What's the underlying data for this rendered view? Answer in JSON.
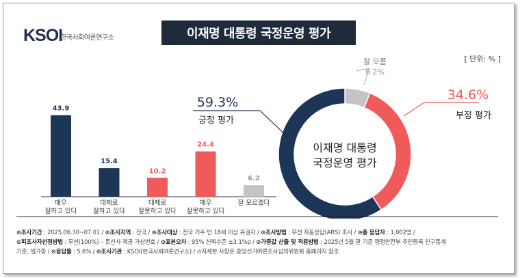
{
  "logo": {
    "brand": "KSOI",
    "name": "한국사회여론연구소"
  },
  "title": "이재명 대통령 국정운영 평가",
  "unit_label": "[ 단위: % ]",
  "colors": {
    "positive": "#1d3557",
    "negative": "#f15a5a",
    "unknown": "#c4c4c4",
    "title_bg": "#1f2a3a"
  },
  "chart_data": [
    {
      "type": "bar",
      "categories": [
        [
          "매우",
          "잘하고 있다"
        ],
        [
          "대체로",
          "잘하고 있다"
        ],
        [
          "대체로",
          "잘못하고 있다"
        ],
        [
          "매우",
          "잘못하고 있다"
        ],
        [
          "잘 모르겠다"
        ]
      ],
      "values": [
        43.9,
        15.4,
        10.2,
        24.4,
        6.2
      ],
      "value_labels": [
        "43.9",
        "15.4",
        "10.2",
        "24.4",
        "6.2"
      ],
      "bar_colors": [
        "#1d3557",
        "#1d3557",
        "#f15a5a",
        "#f15a5a",
        "#c4c4c4"
      ],
      "ylim": [
        0,
        50
      ],
      "grid": false
    },
    {
      "type": "pie",
      "donut": true,
      "center_label": [
        "이재명 대통령",
        "국정운영 평가"
      ],
      "slices": [
        {
          "name": "잘 모름",
          "value": 6.2,
          "label": "6.2%",
          "color": "#c4c4c4"
        },
        {
          "name": "부정 평가",
          "value": 34.6,
          "label": "34.6%",
          "color": "#f15a5a"
        },
        {
          "name": "긍정 평가",
          "value": 59.3,
          "label": "59.3%",
          "color": "#1d3557"
        }
      ]
    }
  ],
  "footer": {
    "lines": [
      [
        {
          "b": "⊙조사기간",
          "t": " : 2025.06.30~07.01 / "
        },
        {
          "b": "⊙조사지역",
          "t": " : 전국 / "
        },
        {
          "b": "⊙조사대상",
          "t": " : 전국 거주 만 18세 이상 유권자 / "
        },
        {
          "b": "⊙조사방법",
          "t": " : 무선 자동응답(ARS) 조사 / "
        },
        {
          "b": "⊙총 응답자",
          "t": " : 1,002명 /"
        }
      ],
      [
        {
          "b": "⊙피조사자선정방법",
          "t": " : 무선(100%) – 통신사 제공 가상번호 / "
        },
        {
          "b": "⊙표본오차",
          "t": " : 95% 신뢰수준 ±3.1%p / "
        },
        {
          "b": "⊙가중값 산출 및 적용방법",
          "t": " : 2025년 5월 말 기준 행정안전부 주민등록 인구통계"
        }
      ],
      [
        {
          "b": "",
          "t": "기준, 셀가중 / "
        },
        {
          "b": "⊙응답률",
          "t": " : 5.6% / "
        },
        {
          "b": "⊙조사기관",
          "t": " : KSOI(한국사회여론연구소) / "
        },
        {
          "b": "",
          "t": "⊙자세한 사항은 중앙선거여론조사심의위원회 홈페이지 참조"
        }
      ]
    ]
  }
}
